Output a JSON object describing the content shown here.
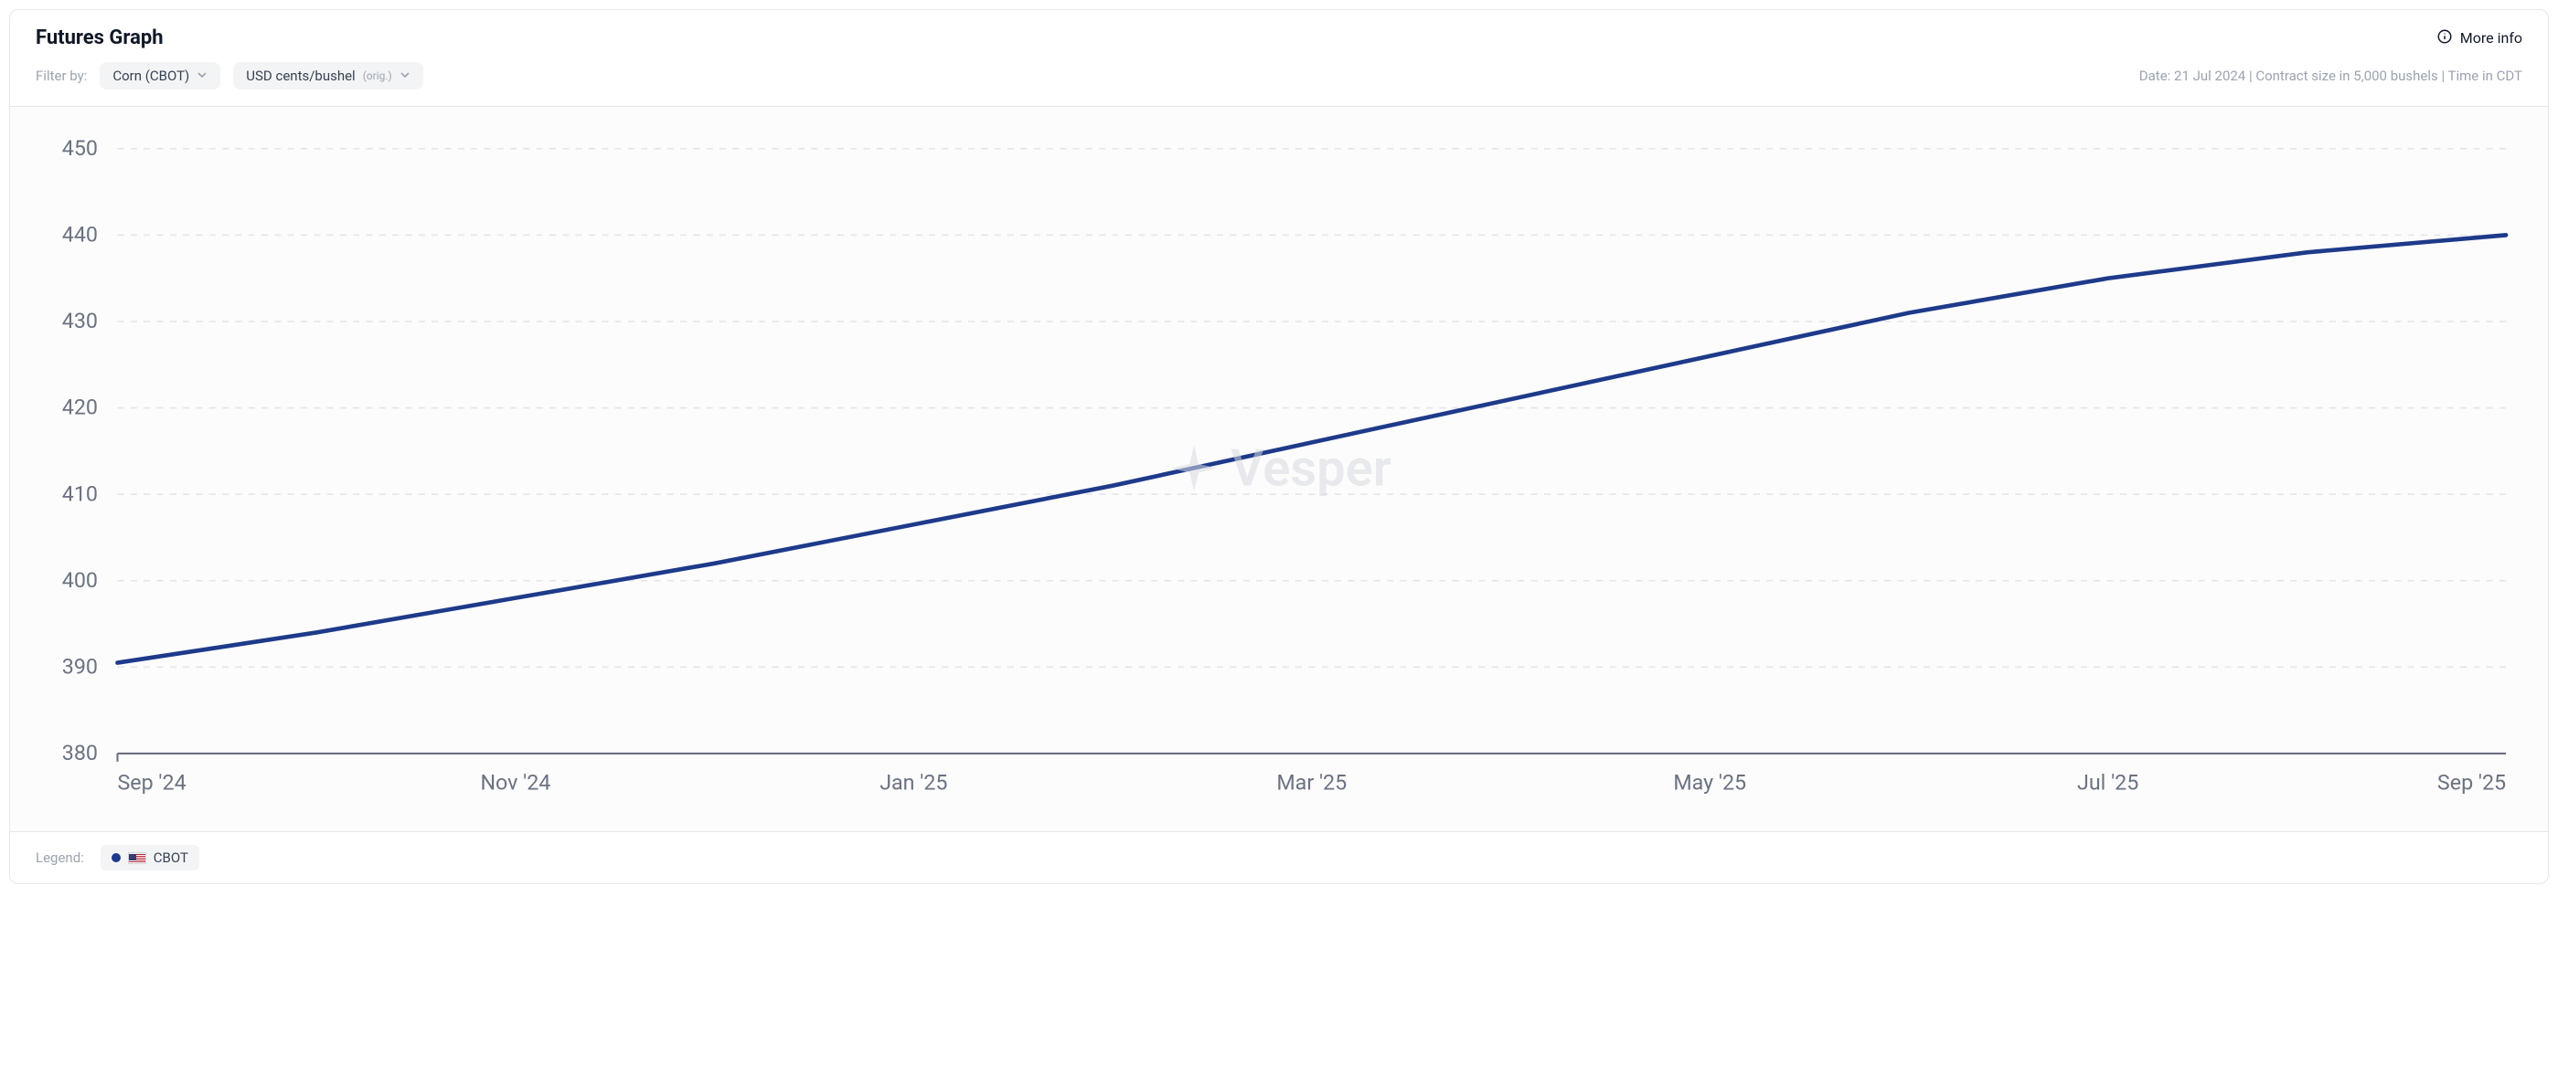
{
  "header": {
    "title": "Futures Graph",
    "more_info": "More info"
  },
  "filters": {
    "label": "Filter by:",
    "commodity": "Corn (CBOT)",
    "unit": "USD cents/bushel",
    "unit_suffix": "(orig.)"
  },
  "meta": "Date: 21 Jul 2024 | Contract size in 5,000 bushels | Time in CDT",
  "watermark": "Vesper",
  "chart": {
    "type": "line",
    "background_color": "#fcfcfd",
    "grid_color": "#e5e7eb",
    "axis_color": "#6b7280",
    "label_color": "#6b7280",
    "label_fontsize": 13,
    "y": {
      "min": 380,
      "max": 450,
      "step": 10,
      "ticks": [
        380,
        390,
        400,
        410,
        420,
        430,
        440,
        450
      ]
    },
    "x": {
      "ticks": [
        "Sep '24",
        "Nov '24",
        "Jan '25",
        "Mar '25",
        "May '25",
        "Jul '25",
        "Sep '25"
      ],
      "positions": [
        0,
        2,
        4,
        6,
        8,
        10,
        12
      ],
      "min": 0,
      "max": 12
    },
    "series": [
      {
        "name": "CBOT",
        "color": "#1e3a8a",
        "line_width": 2.6,
        "points": [
          {
            "x": 0,
            "y": 390.5
          },
          {
            "x": 1,
            "y": 394
          },
          {
            "x": 2,
            "y": 398
          },
          {
            "x": 3,
            "y": 402
          },
          {
            "x": 4,
            "y": 406.5
          },
          {
            "x": 5,
            "y": 411
          },
          {
            "x": 6,
            "y": 416
          },
          {
            "x": 7,
            "y": 421
          },
          {
            "x": 8,
            "y": 426
          },
          {
            "x": 9,
            "y": 431
          },
          {
            "x": 10,
            "y": 435
          },
          {
            "x": 11,
            "y": 438
          },
          {
            "x": 12,
            "y": 440
          }
        ]
      }
    ]
  },
  "legend": {
    "label": "Legend:",
    "items": [
      {
        "name": "CBOT",
        "flag": "us",
        "color": "#1e3a8a"
      }
    ]
  }
}
